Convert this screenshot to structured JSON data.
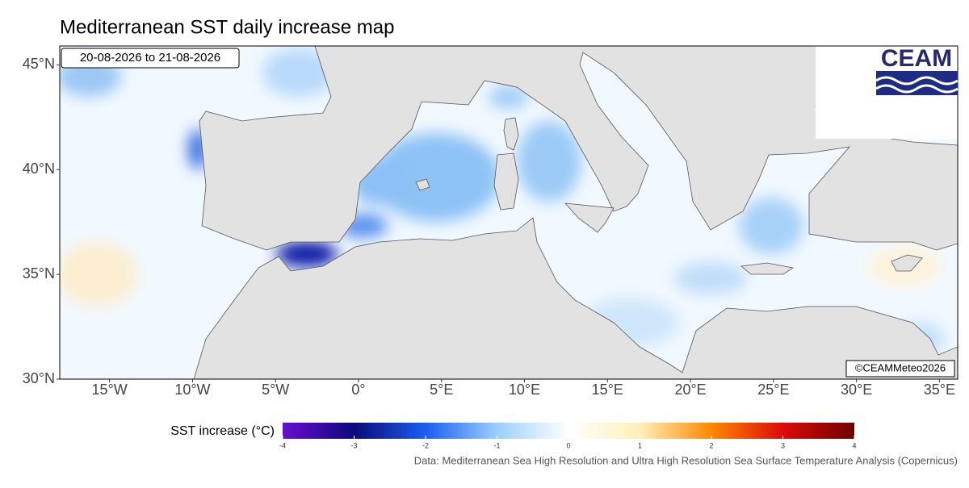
{
  "title": "Mediterranean SST daily increase map",
  "date_range": "20-08-2026 to 21-08-2026",
  "logo": "CEAM",
  "copyright": "©CEAMMeteo2026",
  "map": {
    "xlim": [
      -18,
      36.1
    ],
    "ylim": [
      30,
      45.9
    ],
    "xticks": [
      {
        "value": -15,
        "label": "15°W"
      },
      {
        "value": -10,
        "label": "10°W"
      },
      {
        "value": -5,
        "label": "5°W"
      },
      {
        "value": 0,
        "label": "0°"
      },
      {
        "value": 5,
        "label": "5°E"
      },
      {
        "value": 10,
        "label": "10°E"
      },
      {
        "value": 15,
        "label": "15°E"
      },
      {
        "value": 20,
        "label": "20°E"
      },
      {
        "value": 25,
        "label": "25°E"
      },
      {
        "value": 30,
        "label": "30°E"
      },
      {
        "value": 35,
        "label": "35°E"
      }
    ],
    "yticks": [
      {
        "value": 30,
        "label": "30°N"
      },
      {
        "value": 35,
        "label": "35°N"
      },
      {
        "value": 40,
        "label": "40°N"
      },
      {
        "value": 45,
        "label": "45°N"
      }
    ]
  },
  "colorbar": {
    "label": "SST increase (°C)",
    "range": [
      -4,
      4
    ],
    "ticks": [
      -4,
      -3,
      -2,
      -1,
      0,
      1,
      2,
      3,
      4
    ],
    "colors": [
      "#6a0dd0",
      "#0a0a7a",
      "#1a5ef0",
      "#9ccfff",
      "#ffffff",
      "#fff0b8",
      "#ff8800",
      "#dd0a0a",
      "#6e0000"
    ]
  },
  "source": "Data: Mediterranean Sea High Resolution and Ultra High Resolution Sea Surface Temperature Analysis (Copernicus)"
}
